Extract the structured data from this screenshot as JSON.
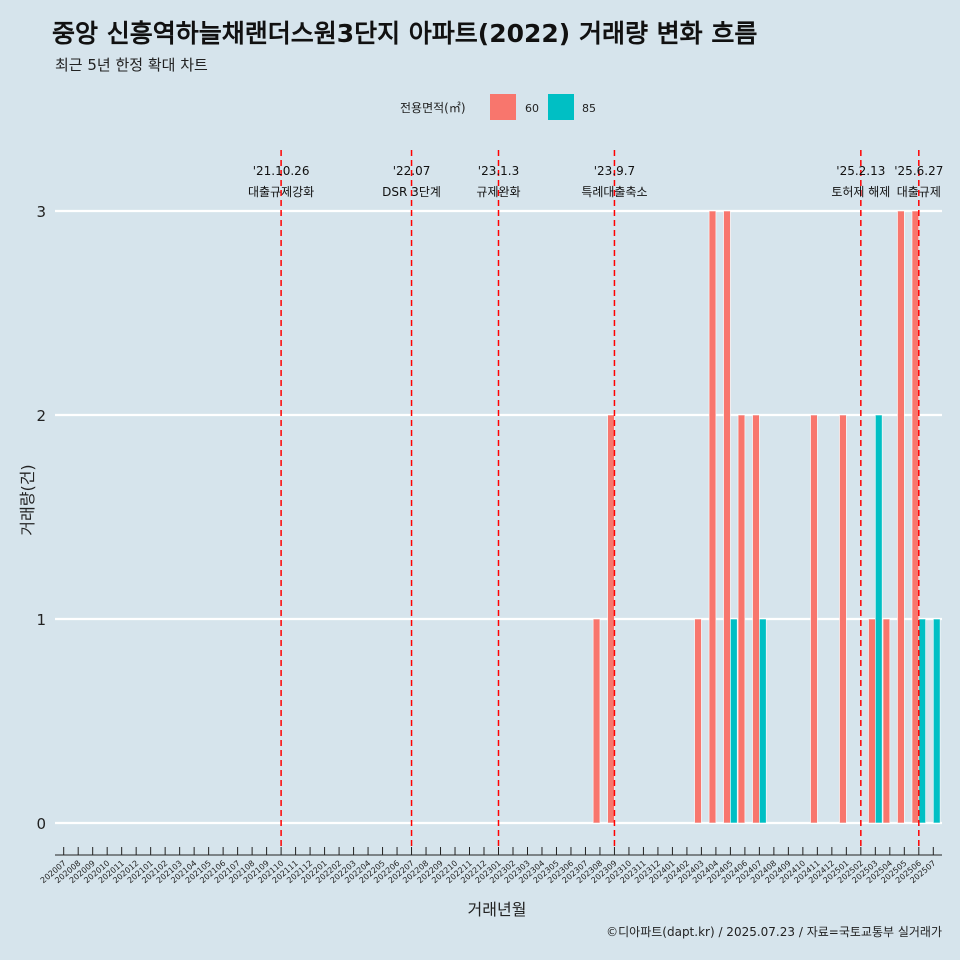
{
  "chart_data": {
    "type": "bar",
    "title": "중앙 신흥역하늘채랜더스원3단지 아파트(2022) 거래량 변화 흐름",
    "subtitle": "최근 5년 한정 확대 차트",
    "xlabel": "거래년월",
    "ylabel": "거래량(건)",
    "ylim": [
      0,
      3
    ],
    "yticks": [
      0,
      1,
      2,
      3
    ],
    "grid": "horizontal",
    "legend": {
      "title": "전용면적(㎡)",
      "position": "top",
      "entries": [
        {
          "name": "60",
          "color": "#f8766d"
        },
        {
          "name": "85",
          "color": "#00bfc4"
        }
      ]
    },
    "categories": [
      "202007",
      "202008",
      "202009",
      "202010",
      "202011",
      "202012",
      "202101",
      "202102",
      "202103",
      "202104",
      "202105",
      "202106",
      "202107",
      "202108",
      "202109",
      "202110",
      "202111",
      "202112",
      "202201",
      "202202",
      "202203",
      "202204",
      "202205",
      "202206",
      "202207",
      "202208",
      "202209",
      "202210",
      "202211",
      "202212",
      "202301",
      "202302",
      "202303",
      "202304",
      "202305",
      "202306",
      "202307",
      "202308",
      "202309",
      "202310",
      "202311",
      "202312",
      "202401",
      "202402",
      "202403",
      "202404",
      "202405",
      "202406",
      "202407",
      "202408",
      "202409",
      "202410",
      "202411",
      "202412",
      "202501",
      "202502",
      "202503",
      "202504",
      "202505",
      "202506",
      "202507"
    ],
    "series": [
      {
        "name": "60",
        "color": "#f8766d",
        "values": [
          0,
          0,
          0,
          0,
          0,
          0,
          0,
          0,
          0,
          0,
          0,
          0,
          0,
          0,
          0,
          0,
          0,
          0,
          0,
          0,
          0,
          0,
          0,
          0,
          0,
          0,
          0,
          0,
          0,
          0,
          0,
          0,
          0,
          0,
          0,
          0,
          0,
          1,
          2,
          0,
          0,
          0,
          0,
          0,
          1,
          3,
          3,
          2,
          2,
          0,
          0,
          0,
          2,
          0,
          2,
          0,
          1,
          1,
          3,
          3,
          0
        ]
      },
      {
        "name": "85",
        "color": "#00bfc4",
        "values": [
          0,
          0,
          0,
          0,
          0,
          0,
          0,
          0,
          0,
          0,
          0,
          0,
          0,
          0,
          0,
          0,
          0,
          0,
          0,
          0,
          0,
          0,
          0,
          0,
          0,
          0,
          0,
          0,
          0,
          0,
          0,
          0,
          0,
          0,
          0,
          0,
          0,
          0,
          0,
          0,
          0,
          0,
          0,
          0,
          0,
          0,
          1,
          0,
          1,
          0,
          0,
          0,
          0,
          0,
          0,
          0,
          2,
          0,
          0,
          1,
          1
        ]
      }
    ],
    "events": [
      {
        "date": "'21.10.26",
        "label": "대출규제강화",
        "category": "202110"
      },
      {
        "date": "'22.07",
        "label": "DSR 3단계",
        "category": "202207"
      },
      {
        "date": "'23.1.3",
        "label": "규제완화",
        "category": "202301"
      },
      {
        "date": "'23.9.7",
        "label": "특례대출축소",
        "category": "202309"
      },
      {
        "date": "'25.2.13",
        "label": "토허제 해제",
        "category": "202502"
      },
      {
        "date": "'25.6.27",
        "label": "대출규제",
        "category": "202506"
      }
    ],
    "caption": "©디아파트(dapt.kr) / 2025.07.23 / 자료=국토교통부 실거래가"
  }
}
